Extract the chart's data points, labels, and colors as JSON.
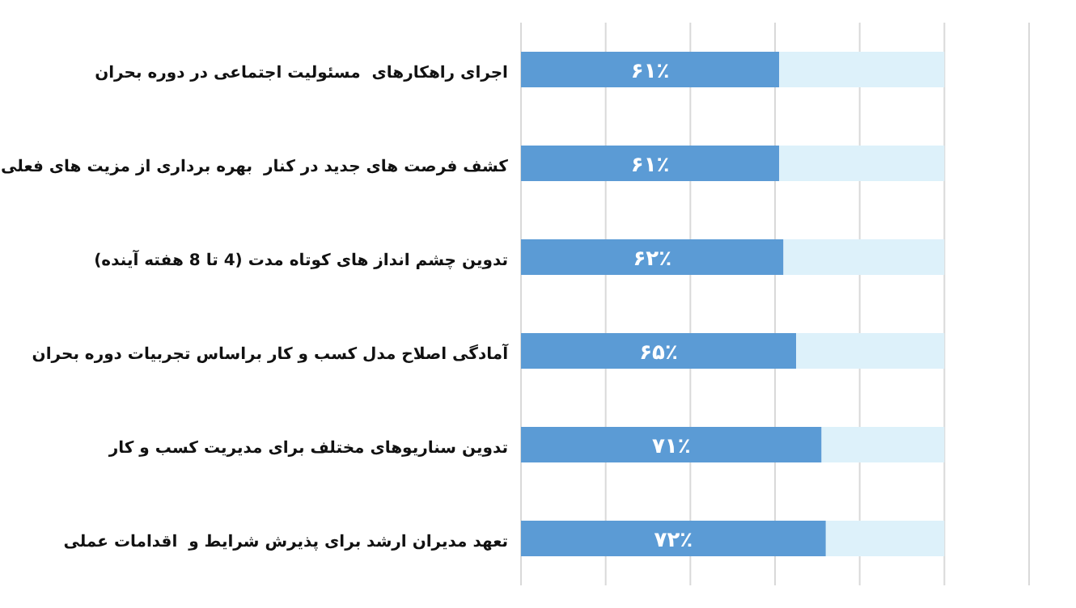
{
  "chart_data": {
    "type": "bar",
    "orientation": "horizontal",
    "categories": [
      "اجرای راهکارهای  مسئولیت اجتماعی در دوره بحران",
      "کشف فرصت های جدید در کنار  بهره برداری از مزیت های فعلی",
      "تدوین چشم انداز های کوتاه مدت (4 تا 8 هفته آینده)",
      "آمادگی اصلاح مدل کسب و کار براساس تجربیات دوره بحران",
      "تدوین سناریوهای مختلف برای مدیریت کسب و کار",
      "تعهد مدیران ارشد برای پذیرش شرایط و  اقدامات عملی"
    ],
    "series": [
      {
        "color": "#5b9bd5",
        "values": [
          61,
          61,
          62,
          65,
          71,
          72
        ],
        "value_labels": [
          "۶۱٪",
          "۶۱٪",
          "۶۲٪",
          "۶۵٪",
          "۷۱٪",
          "۷۲٪"
        ]
      },
      {
        "color": "#ddf1fa",
        "values": [
          39,
          39,
          38,
          35,
          29,
          28
        ]
      }
    ],
    "stacked": true,
    "xlim": [
      0,
      120
    ],
    "xticks": [
      {
        "value": 0,
        "label": null
      },
      {
        "value": 20,
        "label": null
      },
      {
        "value": 40,
        "label": null
      },
      {
        "value": 60,
        "label": null
      },
      {
        "value": 80,
        "label": null
      },
      {
        "value": 100,
        "label": null
      },
      {
        "value": 120,
        "label": null
      }
    ],
    "tick_labels": "y",
    "grid": "x"
  }
}
